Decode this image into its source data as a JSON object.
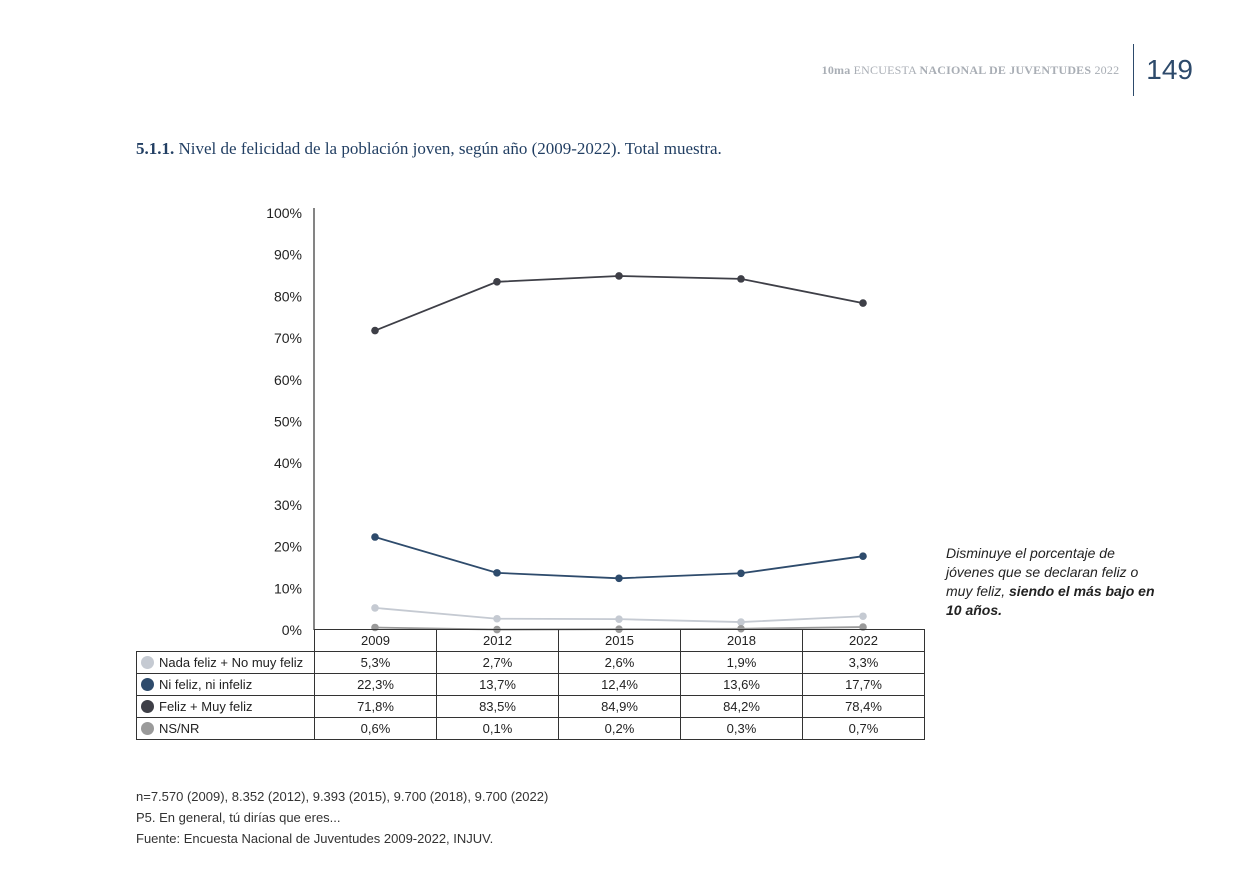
{
  "header": {
    "prefix": "10ma",
    "light_text": "ENCUESTA",
    "bold_text": "NACIONAL DE JUVENTUDES",
    "year": "2022",
    "page_number": "149"
  },
  "title": {
    "number": "5.1.1.",
    "text": "Nivel de felicidad de la población joven, según año (2009-2022). Total muestra."
  },
  "callout": {
    "normal": "Disminuye el porcentaje de jóvenes que se declaran feliz o muy feliz,",
    "bold": "siendo el más bajo en 10 años."
  },
  "colors": {
    "nada": "#c5cad2",
    "ni": "#2e4b6c",
    "feliz": "#3e3f47",
    "nsnr": "#9a9a9a"
  },
  "chart_data": {
    "type": "line",
    "x": [
      "2009",
      "2012",
      "2015",
      "2018",
      "2022"
    ],
    "ylim": [
      0,
      100
    ],
    "yticks": [
      "0%",
      "10%",
      "20%",
      "30%",
      "40%",
      "50%",
      "60%",
      "70%",
      "80%",
      "90%",
      "100%"
    ],
    "grid": false,
    "series": [
      {
        "name": "Nada feliz + No muy feliz",
        "key": "nada",
        "values": [
          5.3,
          2.7,
          2.6,
          1.9,
          3.3
        ],
        "labels": [
          "5,3%",
          "2,7%",
          "2,6%",
          "1,9%",
          "3,3%"
        ]
      },
      {
        "name": "Ni feliz, ni infeliz",
        "key": "ni",
        "values": [
          22.3,
          13.7,
          12.4,
          13.6,
          17.7
        ],
        "labels": [
          "22,3%",
          "13,7%",
          "12,4%",
          "13,6%",
          "17,7%"
        ]
      },
      {
        "name": "Feliz + Muy feliz",
        "key": "feliz",
        "values": [
          71.8,
          83.5,
          84.9,
          84.2,
          78.4
        ],
        "labels": [
          "71,8%",
          "83,5%",
          "84,9%",
          "84,2%",
          "78,4%"
        ]
      },
      {
        "name": "NS/NR",
        "key": "nsnr",
        "values": [
          0.6,
          0.1,
          0.2,
          0.3,
          0.7
        ],
        "labels": [
          "0,6%",
          "0,1%",
          "0,2%",
          "0,3%",
          "0,7%"
        ]
      }
    ]
  },
  "notes": [
    "n=7.570 (2009), 8.352 (2012), 9.393 (2015), 9.700 (2018), 9.700 (2022)",
    "P5. En general, tú dirías que eres...",
    "Fuente: Encuesta Nacional de Juventudes 2009-2022, INJUV."
  ]
}
